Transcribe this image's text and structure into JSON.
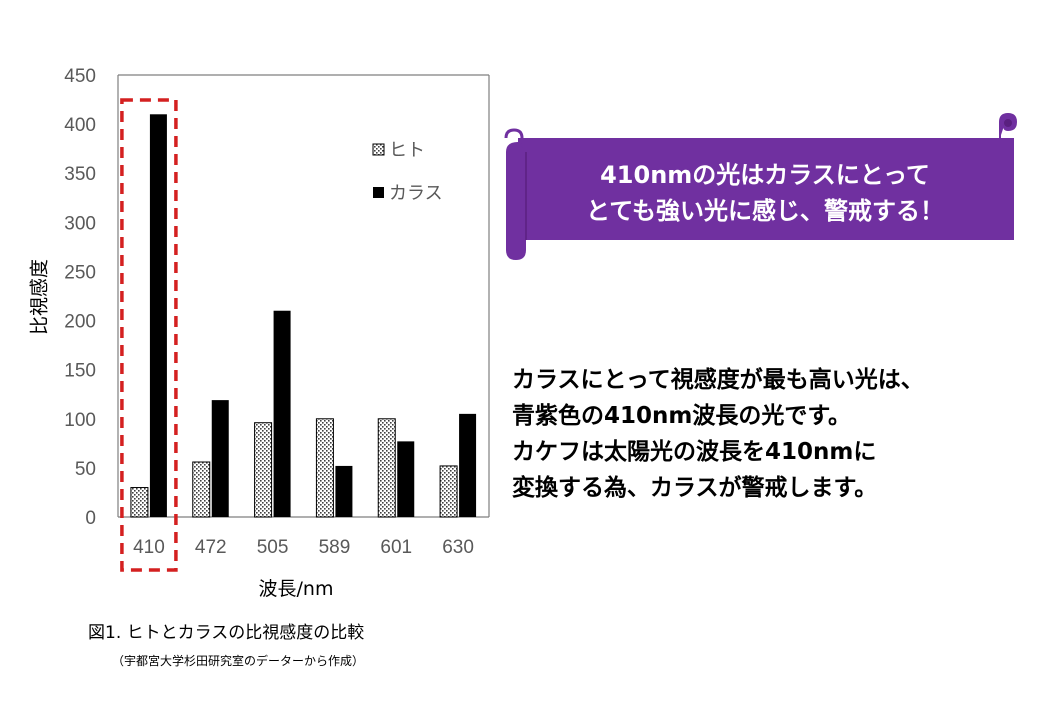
{
  "chart_data": {
    "type": "bar",
    "categories": [
      "410",
      "472",
      "505",
      "589",
      "601",
      "630"
    ],
    "series": [
      {
        "name": "ヒト",
        "values": [
          30,
          56,
          96,
          100,
          100,
          52
        ],
        "color": "#ffffff",
        "pattern": "dotted"
      },
      {
        "name": "カラス",
        "values": [
          410,
          119,
          210,
          52,
          77,
          105
        ],
        "color": "#000000",
        "pattern": "solid"
      }
    ],
    "ylabel": "比視感度",
    "xlabel": "波長/nm",
    "ylim": [
      0,
      450
    ],
    "yticks": [
      0,
      50,
      100,
      150,
      200,
      250,
      300,
      350,
      400,
      450
    ],
    "grid": false,
    "legend_position": "top-right",
    "highlight_category": "410",
    "highlight_color": "#d42020"
  },
  "caption": "図1. ヒトとカラスの比視感度の比較",
  "source": "（宇都宮大学杉田研究室のデーターから作成）",
  "banner": {
    "lines": [
      "410nmの光はカラスにとって",
      "とても強い光に感じ、警戒する！"
    ],
    "color": "#7030a0"
  },
  "body": {
    "lines": [
      "カラスにとって視感度が最も高い光は、",
      "青紫色の410nm波長の光です。",
      "カケフは太陽光の波長を410nmに",
      "変換する為、カラスが警戒します。"
    ]
  }
}
